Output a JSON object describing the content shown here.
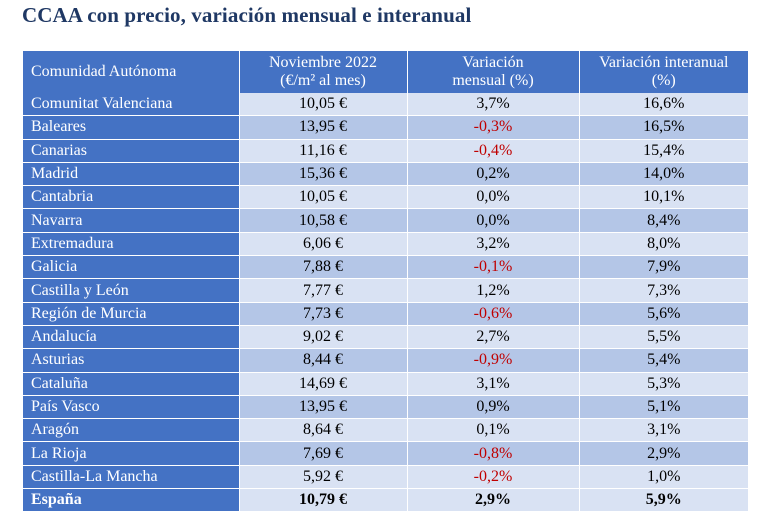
{
  "title": "CCAA con precio, variación mensual e interanual",
  "table": {
    "headers": {
      "col1": "Comunidad Autónoma",
      "col2_line1": "Noviembre 2022",
      "col2_line2": "(€/m² al mes)",
      "col3_line1": "Variación",
      "col3_line2": "mensual (%)",
      "col4_line1": "Variación interanual",
      "col4_line2": "(%)"
    },
    "rows": [
      {
        "region": "Comunitat Valenciana",
        "price": "10,05 €",
        "monthly": "3,7%",
        "annual": "16,6%"
      },
      {
        "region": "Baleares",
        "price": "13,95 €",
        "monthly": "-0,3%",
        "annual": "16,5%"
      },
      {
        "region": "Canarias",
        "price": "11,16 €",
        "monthly": "-0,4%",
        "annual": "15,4%"
      },
      {
        "region": "Madrid",
        "price": "15,36 €",
        "monthly": "0,2%",
        "annual": "14,0%"
      },
      {
        "region": "Cantabria",
        "price": "10,05 €",
        "monthly": "0,0%",
        "annual": "10,1%"
      },
      {
        "region": "Navarra",
        "price": "10,58 €",
        "monthly": "0,0%",
        "annual": "8,4%"
      },
      {
        "region": "Extremadura",
        "price": "6,06 €",
        "monthly": "3,2%",
        "annual": "8,0%"
      },
      {
        "region": "Galicia",
        "price": "7,88 €",
        "monthly": "-0,1%",
        "annual": "7,9%"
      },
      {
        "region": "Castilla y León",
        "price": "7,77 €",
        "monthly": "1,2%",
        "annual": "7,3%"
      },
      {
        "region": "Región de Murcia",
        "price": "7,73 €",
        "monthly": "-0,6%",
        "annual": "5,6%"
      },
      {
        "region": "Andalucía",
        "price": "9,02 €",
        "monthly": "2,7%",
        "annual": "5,5%"
      },
      {
        "region": "Asturias",
        "price": "8,44 €",
        "monthly": "-0,9%",
        "annual": "5,4%"
      },
      {
        "region": "Cataluña",
        "price": "14,69 €",
        "monthly": "3,1%",
        "annual": "5,3%"
      },
      {
        "region": "País Vasco",
        "price": "13,95 €",
        "monthly": "0,9%",
        "annual": "5,1%"
      },
      {
        "region": "Aragón",
        "price": "8,64 €",
        "monthly": "0,1%",
        "annual": "3,1%"
      },
      {
        "region": "La Rioja",
        "price": "7,69 €",
        "monthly": "-0,8%",
        "annual": "2,9%"
      },
      {
        "region": "Castilla-La Mancha",
        "price": "5,92 €",
        "monthly": "-0,2%",
        "annual": "1,0%"
      }
    ],
    "total": {
      "region": "España",
      "price": "10,79 €",
      "monthly": "2,9%",
      "annual": "5,9%"
    }
  },
  "colors": {
    "title": "#1f3864",
    "header_bg": "#4472c4",
    "row_light": "#d9e2f3",
    "row_dark": "#b4c6e7",
    "negative": "#c00000"
  }
}
